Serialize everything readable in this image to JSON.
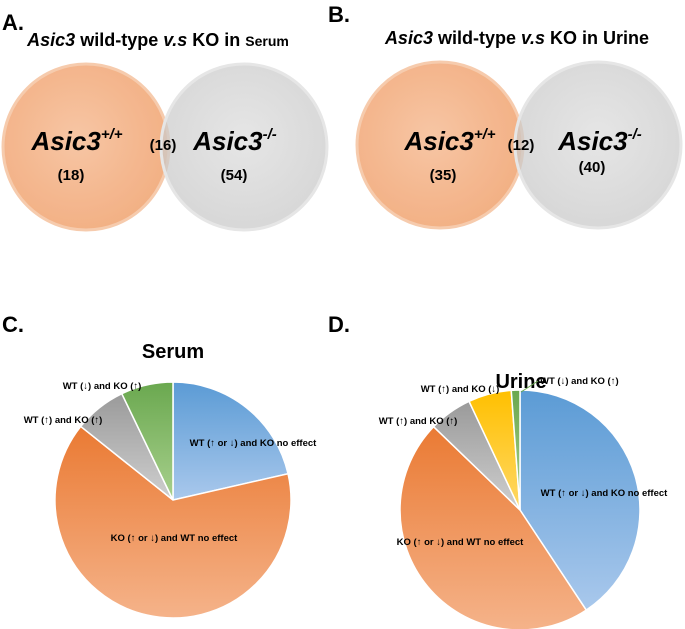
{
  "panels": {
    "a": {
      "letter": "A.",
      "title_gene": "Asic3",
      "title_mid": " wild-type ",
      "title_vs": "v.s",
      "title_ko": " KO in ",
      "title_sample": "Serum",
      "left_name": "Asic3",
      "left_sup": "+/+",
      "left_count": "(18)",
      "overlap_count": "(16)",
      "right_name": "Asic3",
      "right_sup": "-/-",
      "right_count": "(54)"
    },
    "b": {
      "letter": "B.",
      "title_gene": "Asic3",
      "title_mid": " wild-type ",
      "title_vs": "v.s",
      "title_ko": " KO in ",
      "title_sample": "Urine",
      "left_name": "Asic3",
      "left_sup": "+/+",
      "left_count": "(35)",
      "overlap_count": "(12)",
      "right_name": "Asic3",
      "right_sup": "-/-",
      "right_count": "(40)"
    },
    "c": {
      "letter": "C.",
      "title": "Serum"
    },
    "d": {
      "letter": "D.",
      "title": "Urine"
    }
  },
  "chart_data": [
    {
      "type": "venn",
      "title": "Asic3 wild-type v.s KO in Serum",
      "sets": [
        "Asic3+/+",
        "Asic3-/-"
      ],
      "only_left": 18,
      "overlap": 16,
      "only_right": 54,
      "colors": {
        "left": "#f4b183",
        "right": "#d0d0d0"
      }
    },
    {
      "type": "venn",
      "title": "Asic3 wild-type v.s KO in Urine",
      "sets": [
        "Asic3+/+",
        "Asic3-/-"
      ],
      "only_left": 35,
      "overlap": 12,
      "only_right": 40,
      "colors": {
        "left": "#f4b183",
        "right": "#d0d0d0"
      }
    },
    {
      "type": "pie",
      "title": "Serum",
      "slices": [
        {
          "label": "WT (↑ or ↓) and KO no effect",
          "value": 18,
          "color": "#5b9bd5"
        },
        {
          "label": "KO (↑ or ↓) and WT no effect",
          "value": 54,
          "color": "#ed7d31"
        },
        {
          "label": "WT (↑) and KO (↑)",
          "value": 6,
          "color": "#a5a5a5"
        },
        {
          "label": "WT (↓) and KO (↑)",
          "value": 6,
          "color": "#70ad47"
        }
      ]
    },
    {
      "type": "pie",
      "title": "Urine",
      "slices": [
        {
          "label": "WT (↑ or ↓) and KO no effect",
          "value": 35,
          "color": "#5b9bd5"
        },
        {
          "label": "KO (↑ or ↓) and WT no effect",
          "value": 40,
          "color": "#ed7d31"
        },
        {
          "label": "WT (↑) and KO (↑)",
          "value": 5,
          "color": "#a5a5a5"
        },
        {
          "label": "WT (↑) and KO (↓)",
          "value": 5,
          "color": "#ffc000"
        },
        {
          "label": "WT (↓) and KO (↑)",
          "value": 1,
          "color": "#70ad47"
        }
      ]
    }
  ]
}
